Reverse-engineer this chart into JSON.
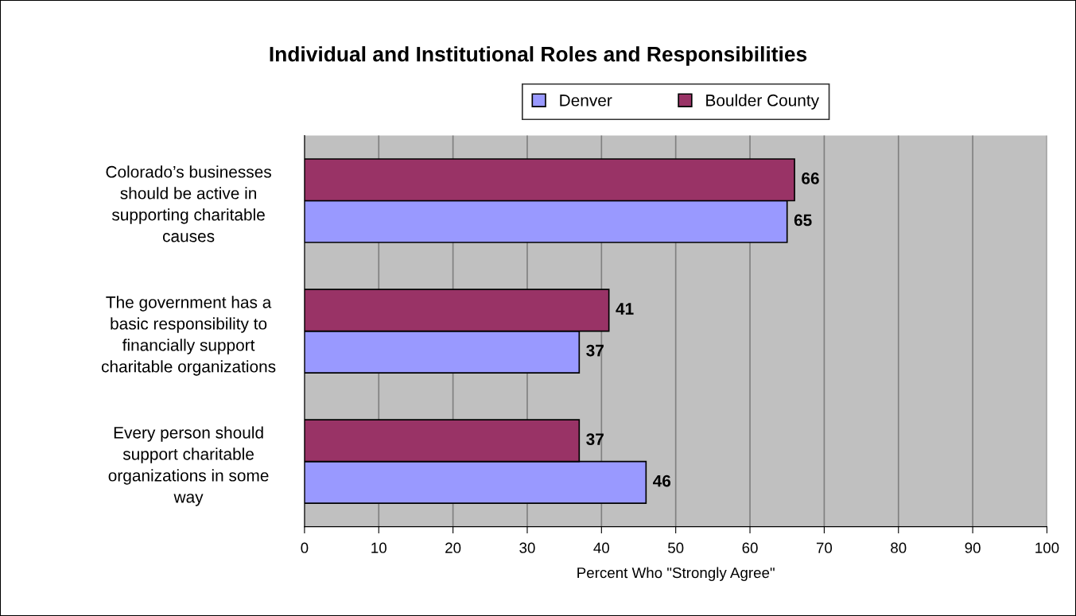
{
  "chart_data": {
    "type": "bar",
    "orientation": "horizontal",
    "title": "Individual and Institutional Roles and Responsibilities",
    "xlabel": "Percent Who \"Strongly Agree\"",
    "categories": [
      "Colorado’s businesses\nshould be active in\nsupporting charitable\ncauses",
      "The government has a\nbasic responsibility to\nfinancially support\ncharitable organizations",
      "Every person should\nsupport charitable\norganizations in some\nway"
    ],
    "series": [
      {
        "name": "Denver",
        "color": "#9999ff",
        "values": [
          65,
          37,
          46
        ]
      },
      {
        "name": "Boulder County",
        "color": "#993366",
        "values": [
          66,
          41,
          37
        ]
      }
    ],
    "xlim": [
      0,
      100
    ],
    "xticks": [
      0,
      10,
      20,
      30,
      40,
      50,
      60,
      70,
      80,
      90,
      100
    ],
    "grid": "x",
    "legend": "top",
    "data_labels": true
  }
}
